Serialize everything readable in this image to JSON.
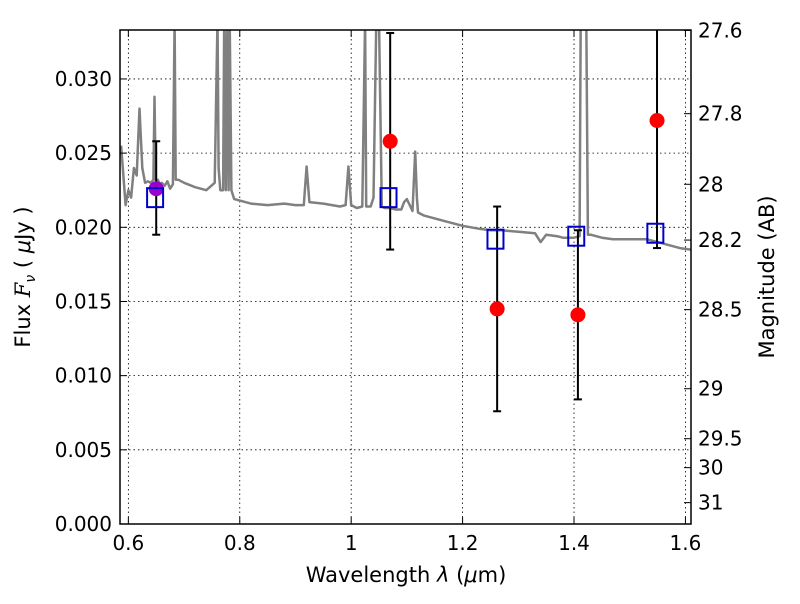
{
  "chart_data": {
    "type": "scatter",
    "xlabel_parts": [
      "Wavelength  ",
      "λ",
      " (",
      "μ",
      "m)"
    ],
    "ylabel_parts": [
      "Flux  ",
      "F",
      "ν",
      "  ( ",
      "μ",
      "Jy )"
    ],
    "y2label": "Magnitude (AB)",
    "xlim": [
      0.585,
      1.61
    ],
    "ylim": [
      0.0,
      0.0333
    ],
    "x_ticks": [
      0.6,
      0.8,
      1.0,
      1.2,
      1.4,
      1.6
    ],
    "x_tick_labels": [
      "0.6",
      "0.8",
      "1",
      "1.2",
      "1.4",
      "1.6"
    ],
    "y_ticks": [
      0.0,
      0.005,
      0.01,
      0.015,
      0.02,
      0.025,
      0.03
    ],
    "y_tick_labels": [
      "0.000",
      "0.005",
      "0.010",
      "0.015",
      "0.020",
      "0.025",
      "0.030"
    ],
    "y2_ticks": [
      {
        "flux": 0.03327,
        "label": "27.6"
      },
      {
        "flux": 0.02766,
        "label": "27.8"
      },
      {
        "flux": 0.0229,
        "label": "28"
      },
      {
        "flux": 0.01914,
        "label": "28.2"
      },
      {
        "flux": 0.01445,
        "label": "28.5"
      },
      {
        "flux": 0.00912,
        "label": "29"
      },
      {
        "flux": 0.00575,
        "label": "29.5"
      },
      {
        "flux": 0.0038,
        "label": "30"
      },
      {
        "flux": 0.00144,
        "label": "31"
      }
    ],
    "grid": true,
    "colors": {
      "spectrum": "#808080",
      "observed": "#ff0000",
      "highlight": "#9900cc",
      "model": "#0000cc",
      "errorbar": "#000000"
    },
    "model_spectrum": {
      "x": [
        0.587,
        0.595,
        0.6,
        0.605,
        0.61,
        0.615,
        0.62,
        0.625,
        0.63,
        0.635,
        0.64,
        0.645,
        0.647,
        0.649,
        0.651,
        0.653,
        0.656,
        0.66,
        0.665,
        0.67,
        0.675,
        0.68,
        0.683,
        0.685,
        0.69,
        0.7,
        0.72,
        0.74,
        0.755,
        0.76,
        0.762,
        0.765,
        0.77,
        0.772,
        0.775,
        0.777,
        0.78,
        0.782,
        0.785,
        0.79,
        0.8,
        0.82,
        0.85,
        0.88,
        0.9,
        0.915,
        0.92,
        0.925,
        0.95,
        0.98,
        0.99,
        0.995,
        1.0,
        1.01,
        1.02,
        1.025,
        1.027,
        1.03,
        1.035,
        1.04,
        1.045,
        1.05,
        1.055,
        1.06,
        1.07,
        1.08,
        1.09,
        1.095,
        1.1,
        1.11,
        1.115,
        1.118,
        1.12,
        1.13,
        1.15,
        1.17,
        1.2,
        1.23,
        1.25,
        1.27,
        1.3,
        1.33,
        1.34,
        1.35,
        1.37,
        1.38,
        1.4,
        1.41,
        1.412,
        1.415,
        1.418,
        1.42,
        1.422,
        1.425,
        1.43,
        1.44,
        1.45,
        1.47,
        1.5,
        1.53,
        1.55,
        1.57,
        1.59,
        1.61
      ],
      "y": [
        0.0255,
        0.0215,
        0.0225,
        0.022,
        0.024,
        0.0235,
        0.028,
        0.024,
        0.023,
        0.0231,
        0.023,
        0.0232,
        0.0288,
        0.0232,
        0.023,
        0.0232,
        0.0229,
        0.023,
        0.0228,
        0.0231,
        0.0226,
        0.0229,
        0.034,
        0.0232,
        0.0232,
        0.023,
        0.0227,
        0.0225,
        0.023,
        0.034,
        0.024,
        0.0225,
        0.0225,
        0.034,
        0.0225,
        0.034,
        0.0225,
        0.034,
        0.0225,
        0.0219,
        0.0218,
        0.0216,
        0.0215,
        0.0216,
        0.0215,
        0.0215,
        0.0241,
        0.0217,
        0.0216,
        0.0214,
        0.0215,
        0.0241,
        0.0215,
        0.0213,
        0.0214,
        0.034,
        0.0214,
        0.0214,
        0.0214,
        0.022,
        0.034,
        0.034,
        0.0214,
        0.0213,
        0.0213,
        0.0212,
        0.0212,
        0.0217,
        0.0219,
        0.0211,
        0.0251,
        0.022,
        0.021,
        0.0208,
        0.0206,
        0.0204,
        0.0201,
        0.0199,
        0.0198,
        0.0198,
        0.0197,
        0.0196,
        0.019,
        0.0195,
        0.0194,
        0.0193,
        0.0193,
        0.0194,
        0.034,
        0.034,
        0.034,
        0.034,
        0.034,
        0.0195,
        0.0195,
        0.0194,
        0.0193,
        0.0192,
        0.0192,
        0.0192,
        0.019,
        0.0188,
        0.0186,
        0.0185
      ]
    },
    "observed": [
      {
        "x": 0.65,
        "y": 0.0226,
        "err_low": 0.0195,
        "err_high": 0.0258,
        "highlight": true
      },
      {
        "x": 1.07,
        "y": 0.0258,
        "err_low": 0.0185,
        "err_high": 0.0331,
        "highlight": false
      },
      {
        "x": 1.262,
        "y": 0.0145,
        "err_low": 0.0076,
        "err_high": 0.0214,
        "highlight": false
      },
      {
        "x": 1.407,
        "y": 0.0141,
        "err_low": 0.0084,
        "err_high": 0.0198,
        "highlight": false
      },
      {
        "x": 1.549,
        "y": 0.0272,
        "err_low": 0.0186,
        "err_high": 0.034,
        "highlight": false
      }
    ],
    "model_points": [
      {
        "x": 0.648,
        "y": 0.022
      },
      {
        "x": 1.067,
        "y": 0.022
      },
      {
        "x": 1.259,
        "y": 0.0192
      },
      {
        "x": 1.404,
        "y": 0.0194
      },
      {
        "x": 1.546,
        "y": 0.0196
      }
    ]
  }
}
